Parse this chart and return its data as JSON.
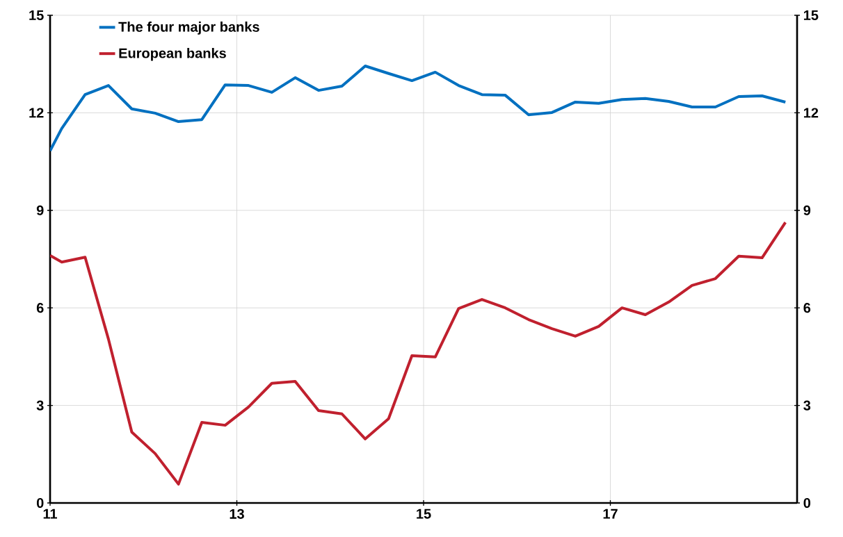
{
  "chart_data": {
    "type": "line",
    "x": [
      11,
      11.125,
      11.375,
      11.625,
      11.875,
      12.125,
      12.375,
      12.625,
      12.875,
      13.125,
      13.375,
      13.625,
      13.875,
      14.125,
      14.375,
      14.625,
      14.875,
      15.125,
      15.375,
      15.625,
      15.875,
      16.125,
      16.375,
      16.625,
      16.875,
      17.125,
      17.375,
      17.625,
      17.875,
      18.125,
      18.375,
      18.625,
      18.875
    ],
    "series": [
      {
        "name": "The four major banks",
        "color": "#0070c0",
        "values": [
          10.83,
          11.52,
          12.56,
          12.84,
          12.12,
          11.99,
          11.73,
          11.79,
          12.86,
          12.84,
          12.63,
          13.08,
          12.69,
          12.82,
          13.44,
          13.21,
          12.99,
          13.25,
          12.84,
          12.56,
          12.54,
          11.94,
          12.01,
          12.33,
          12.29,
          12.41,
          12.44,
          12.35,
          12.18,
          12.18,
          12.5,
          12.52,
          12.33
        ]
      },
      {
        "name": "European banks",
        "color": "#c0202e",
        "values": [
          7.61,
          7.41,
          7.56,
          5.04,
          2.18,
          1.52,
          0.58,
          2.48,
          2.39,
          2.95,
          3.68,
          3.74,
          2.84,
          2.74,
          1.97,
          2.59,
          4.53,
          4.49,
          5.98,
          6.26,
          6.0,
          5.64,
          5.36,
          5.13,
          5.43,
          6.0,
          5.79,
          6.18,
          6.69,
          6.9,
          7.59,
          7.54,
          8.63
        ]
      }
    ],
    "xlim": [
      11,
      19
    ],
    "xticks": [
      11,
      13,
      15,
      17
    ],
    "ylim": [
      0,
      15
    ],
    "yticks": [
      0,
      3,
      6,
      9,
      12,
      15
    ],
    "y2lim": [
      0,
      15
    ],
    "y2ticks": [
      0,
      3,
      6,
      9,
      12,
      15
    ],
    "grid": true,
    "legend": "top left",
    "marker": "none",
    "line_style": "solid"
  }
}
